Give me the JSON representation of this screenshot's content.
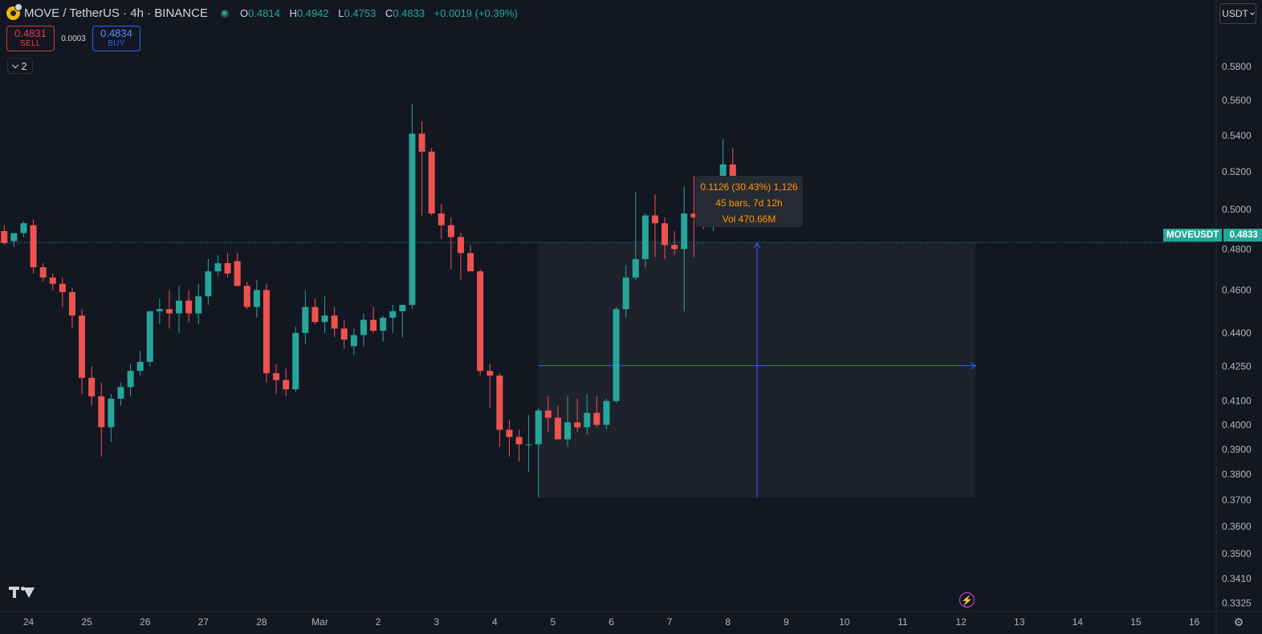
{
  "header": {
    "symbol": "MOVE / TetherUS · 4h · BINANCE",
    "o_label": "O",
    "o": "0.4814",
    "h_label": "H",
    "h": "0.4942",
    "l_label": "L",
    "l": "0.4753",
    "c_label": "C",
    "c": "0.4833",
    "change": "+0.0019 (+0.39%)"
  },
  "trade": {
    "sell_price": "0.4831",
    "sell_label": "SELL",
    "spread": "0.0003",
    "buy_price": "0.4834",
    "buy_label": "BUY"
  },
  "indicators_toggle": "2",
  "currency_button": "USDT",
  "last_price": {
    "symbol": "MOVEUSDT",
    "price": "0.4833"
  },
  "measure": {
    "line1": "0.1126 (30.43%) 1,126",
    "line2": "45 bars, 7d 12h",
    "line3": "Vol 470.66M"
  },
  "colors": {
    "up": "#26a69a",
    "down": "#ef5350",
    "background": "#131722",
    "grid": "#1e222d",
    "measure_fill": "#1f232d",
    "measure_line": "#2962ff",
    "tooltip_text": "#ff9800"
  },
  "chart_data": {
    "type": "candlestick",
    "title": "MOVE / TetherUS · 4h · BINANCE",
    "ylim": [
      0.3296,
      0.5951
    ],
    "y_scale": "log",
    "y_ticks": [
      "0.5800",
      "0.5600",
      "0.5400",
      "0.5200",
      "0.5000",
      "0.4800",
      "0.4600",
      "0.4400",
      "0.4250",
      "0.4100",
      "0.4000",
      "0.3900",
      "0.3800",
      "0.3700",
      "0.3600",
      "0.3500",
      "0.3410",
      "0.3325"
    ],
    "x_ticks": [
      "24",
      "25",
      "26",
      "27",
      "28",
      "Mar",
      "2",
      "3",
      "4",
      "5",
      "6",
      "7",
      "8",
      "9",
      "10",
      "11",
      "12",
      "13",
      "14",
      "15",
      "16"
    ],
    "x_tick_bars": [
      0,
      6,
      12,
      18,
      24,
      30,
      36,
      42,
      48,
      54,
      60,
      66,
      72,
      78,
      84,
      90,
      96,
      102,
      108,
      114,
      120
    ],
    "first_bar_offset": -2.5,
    "candles": [
      [
        0.489,
        0.492,
        0.482,
        0.483
      ],
      [
        0.484,
        0.488,
        0.481,
        0.488
      ],
      [
        0.488,
        0.494,
        0.486,
        0.493
      ],
      [
        0.492,
        0.495,
        0.468,
        0.471
      ],
      [
        0.471,
        0.473,
        0.464,
        0.466
      ],
      [
        0.466,
        0.468,
        0.46,
        0.463
      ],
      [
        0.463,
        0.466,
        0.452,
        0.459
      ],
      [
        0.459,
        0.461,
        0.442,
        0.448
      ],
      [
        0.448,
        0.451,
        0.413,
        0.42
      ],
      [
        0.42,
        0.425,
        0.408,
        0.412
      ],
      [
        0.412,
        0.418,
        0.387,
        0.399
      ],
      [
        0.399,
        0.413,
        0.393,
        0.411
      ],
      [
        0.411,
        0.418,
        0.408,
        0.416
      ],
      [
        0.416,
        0.426,
        0.412,
        0.423
      ],
      [
        0.423,
        0.432,
        0.421,
        0.427
      ],
      [
        0.427,
        0.45,
        0.425,
        0.45
      ],
      [
        0.45,
        0.456,
        0.444,
        0.451
      ],
      [
        0.451,
        0.46,
        0.442,
        0.449
      ],
      [
        0.449,
        0.462,
        0.44,
        0.455
      ],
      [
        0.455,
        0.46,
        0.445,
        0.449
      ],
      [
        0.449,
        0.463,
        0.444,
        0.457
      ],
      [
        0.457,
        0.475,
        0.453,
        0.469
      ],
      [
        0.469,
        0.477,
        0.467,
        0.473
      ],
      [
        0.473,
        0.478,
        0.466,
        0.468
      ],
      [
        0.474,
        0.478,
        0.462,
        0.462
      ],
      [
        0.462,
        0.464,
        0.451,
        0.452
      ],
      [
        0.452,
        0.465,
        0.447,
        0.46
      ],
      [
        0.46,
        0.463,
        0.418,
        0.422
      ],
      [
        0.422,
        0.426,
        0.413,
        0.419
      ],
      [
        0.419,
        0.424,
        0.412,
        0.415
      ],
      [
        0.415,
        0.443,
        0.414,
        0.44
      ],
      [
        0.44,
        0.46,
        0.435,
        0.452
      ],
      [
        0.452,
        0.456,
        0.444,
        0.445
      ],
      [
        0.445,
        0.457,
        0.44,
        0.448
      ],
      [
        0.448,
        0.452,
        0.438,
        0.442
      ],
      [
        0.442,
        0.446,
        0.433,
        0.437
      ],
      [
        0.434,
        0.442,
        0.43,
        0.439
      ],
      [
        0.439,
        0.449,
        0.434,
        0.446
      ],
      [
        0.446,
        0.452,
        0.44,
        0.441
      ],
      [
        0.441,
        0.448,
        0.436,
        0.447
      ],
      [
        0.447,
        0.453,
        0.44,
        0.45
      ],
      [
        0.45,
        0.453,
        0.438,
        0.453
      ],
      [
        0.453,
        0.558,
        0.451,
        0.541
      ],
      [
        0.541,
        0.548,
        0.497,
        0.531
      ],
      [
        0.531,
        0.533,
        0.497,
        0.498
      ],
      [
        0.498,
        0.503,
        0.485,
        0.492
      ],
      [
        0.492,
        0.496,
        0.47,
        0.486
      ],
      [
        0.486,
        0.488,
        0.465,
        0.478
      ],
      [
        0.478,
        0.482,
        0.469,
        0.469
      ],
      [
        0.469,
        0.47,
        0.421,
        0.423
      ],
      [
        0.423,
        0.426,
        0.407,
        0.421
      ],
      [
        0.421,
        0.422,
        0.391,
        0.398
      ],
      [
        0.398,
        0.402,
        0.387,
        0.395
      ],
      [
        0.395,
        0.398,
        0.385,
        0.392
      ],
      [
        0.392,
        0.404,
        0.381,
        0.392
      ],
      [
        0.392,
        0.407,
        0.371,
        0.406
      ],
      [
        0.406,
        0.412,
        0.397,
        0.403
      ],
      [
        0.403,
        0.408,
        0.394,
        0.394
      ],
      [
        0.394,
        0.412,
        0.391,
        0.401
      ],
      [
        0.401,
        0.411,
        0.397,
        0.399
      ],
      [
        0.399,
        0.413,
        0.396,
        0.405
      ],
      [
        0.405,
        0.412,
        0.399,
        0.4
      ],
      [
        0.4,
        0.411,
        0.398,
        0.41
      ],
      [
        0.41,
        0.452,
        0.409,
        0.451
      ],
      [
        0.451,
        0.472,
        0.447,
        0.466
      ],
      [
        0.466,
        0.509,
        0.465,
        0.475
      ],
      [
        0.475,
        0.498,
        0.471,
        0.497
      ],
      [
        0.497,
        0.508,
        0.476,
        0.493
      ],
      [
        0.493,
        0.496,
        0.475,
        0.482
      ],
      [
        0.482,
        0.489,
        0.477,
        0.48
      ],
      [
        0.48,
        0.512,
        0.45,
        0.498
      ],
      [
        0.498,
        0.518,
        0.476,
        0.496
      ],
      [
        0.496,
        0.501,
        0.49,
        0.492
      ],
      [
        0.492,
        0.506,
        0.489,
        0.505
      ],
      [
        0.505,
        0.538,
        0.499,
        0.524
      ],
      [
        0.524,
        0.533,
        0.507,
        0.515
      ]
    ]
  }
}
